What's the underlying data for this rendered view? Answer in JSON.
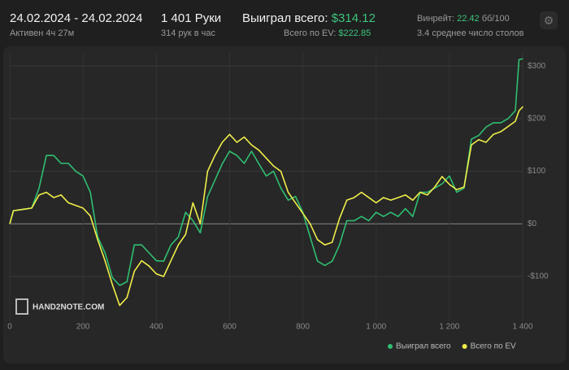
{
  "header": {
    "dates": "24.02.2024 - 24.02.2024",
    "active": "Активен 4ч 27м",
    "hands": "1 401 Руки",
    "hands_per_hour": "314 рук в час",
    "won_label": "Выиграл всего:",
    "won_value": "$314.12",
    "ev_label": "Всего по EV:",
    "ev_value": "$222.85",
    "winrate_label": "Винрейт:",
    "winrate_value": "22.42",
    "winrate_unit": "бб/100",
    "tables": "3.4 среднее число столов"
  },
  "chart_data": {
    "type": "line",
    "watermark": "HAND2NOTE.COM",
    "x": [
      0,
      10,
      40,
      60,
      80,
      100,
      120,
      140,
      160,
      180,
      200,
      220,
      240,
      260,
      280,
      300,
      320,
      340,
      360,
      380,
      400,
      420,
      440,
      460,
      480,
      500,
      520,
      540,
      560,
      580,
      600,
      620,
      640,
      660,
      680,
      700,
      720,
      740,
      760,
      780,
      800,
      820,
      840,
      860,
      880,
      900,
      920,
      940,
      960,
      980,
      1000,
      1020,
      1040,
      1060,
      1080,
      1100,
      1120,
      1140,
      1160,
      1180,
      1200,
      1220,
      1240,
      1260,
      1280,
      1300,
      1320,
      1340,
      1360,
      1380,
      1390,
      1401
    ],
    "series": [
      {
        "name": "Выиграл всего",
        "color": "#2fbf71",
        "values": [
          0,
          25,
          28,
          30,
          68,
          130,
          130,
          115,
          115,
          100,
          91,
          60,
          -25,
          -55,
          -102,
          -117,
          -110,
          -40,
          -40,
          -55,
          -70,
          -71,
          -40,
          -25,
          22,
          6,
          -17,
          52,
          83,
          114,
          138,
          130,
          115,
          138,
          114,
          91,
          100,
          68,
          45,
          52,
          22,
          -25,
          -71,
          -79,
          -71,
          -40,
          6,
          6,
          14,
          6,
          22,
          14,
          22,
          14,
          29,
          14,
          60,
          60,
          68,
          76,
          91,
          60,
          68,
          161,
          168,
          184,
          192,
          192,
          200,
          215,
          312,
          314
        ]
      },
      {
        "name": "Всего по EV",
        "color": "#f0ee4a",
        "values": [
          0,
          25,
          28,
          30,
          55,
          60,
          50,
          55,
          40,
          35,
          30,
          15,
          -30,
          -70,
          -115,
          -155,
          -140,
          -90,
          -70,
          -80,
          -95,
          -100,
          -70,
          -40,
          -20,
          40,
          0,
          100,
          130,
          155,
          170,
          155,
          165,
          150,
          140,
          125,
          110,
          100,
          60,
          40,
          20,
          0,
          -30,
          -40,
          -35,
          10,
          45,
          50,
          60,
          50,
          40,
          50,
          45,
          50,
          55,
          45,
          60,
          55,
          70,
          90,
          75,
          65,
          70,
          150,
          160,
          155,
          170,
          175,
          185,
          195,
          215,
          223
        ]
      }
    ],
    "xlim": [
      0,
      1400
    ],
    "ylim": [
      -185,
      325
    ],
    "xticks": [
      0,
      200,
      400,
      600,
      800,
      {
        "value": 1000,
        "label": "1 000"
      },
      {
        "value": 1200,
        "label": "1 200"
      },
      {
        "value": 1400,
        "label": "1 400"
      }
    ],
    "yticks": [
      {
        "value": -100,
        "label": "-$100"
      },
      {
        "value": 0,
        "label": "$0"
      },
      {
        "value": 100,
        "label": "$100"
      },
      {
        "value": 200,
        "label": "$200"
      },
      {
        "value": 300,
        "label": "$300"
      }
    ],
    "grid": true,
    "legend": "bottom-right"
  }
}
